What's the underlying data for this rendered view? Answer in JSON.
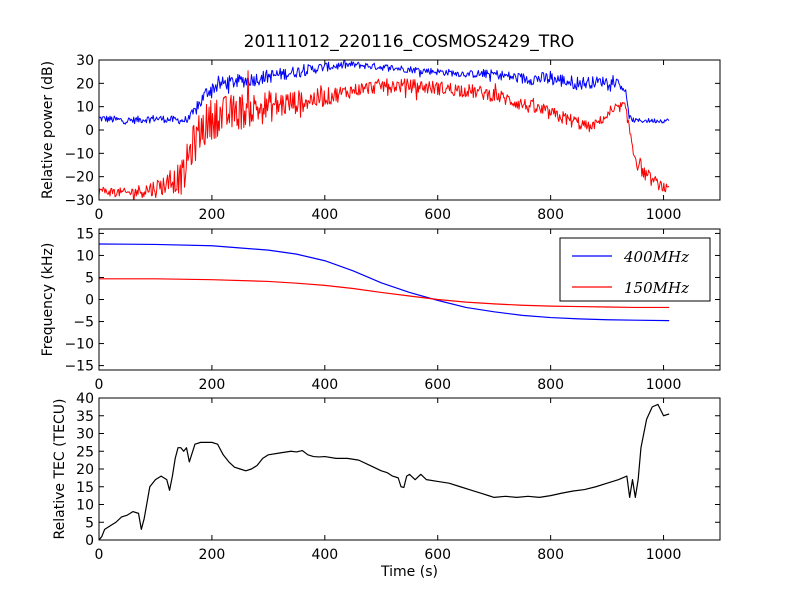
{
  "title": "20111012_220116_COSMOS2429_TRO",
  "chart_data": [
    {
      "type": "line",
      "id": "power",
      "ylabel": "Relative power (dB)",
      "xlabel": "",
      "xlim": [
        0,
        1100
      ],
      "ylim": [
        -30,
        30
      ],
      "xticks": [
        0,
        200,
        400,
        600,
        800,
        1000
      ],
      "yticks": [
        -30,
        -20,
        -10,
        0,
        10,
        20,
        30
      ],
      "noisy": true,
      "series": [
        {
          "color": "#0000ff",
          "x": [
            0,
            50,
            100,
            150,
            160,
            170,
            180,
            190,
            200,
            220,
            250,
            280,
            300,
            350,
            400,
            450,
            500,
            550,
            600,
            650,
            700,
            750,
            800,
            850,
            900,
            920,
            930,
            940,
            950,
            1010
          ],
          "y": [
            5,
            4,
            5,
            4,
            5,
            8,
            12,
            16,
            18,
            20,
            21,
            22,
            23,
            25,
            27,
            28,
            27,
            26,
            25,
            24,
            24,
            22,
            22,
            20,
            21,
            20,
            18,
            5,
            4,
            4
          ],
          "amp": [
            1.6,
            1.6,
            1.6,
            1.6,
            2,
            2.5,
            3,
            3,
            3,
            3,
            3,
            3,
            3,
            2.5,
            2,
            1.5,
            1.5,
            1.5,
            1.5,
            1.5,
            2,
            2.5,
            3,
            3,
            2,
            2,
            2,
            1.5,
            1,
            1
          ]
        },
        {
          "color": "#ff0000",
          "x": [
            0,
            50,
            100,
            130,
            150,
            160,
            170,
            180,
            200,
            250,
            300,
            350,
            400,
            450,
            500,
            550,
            600,
            650,
            700,
            750,
            800,
            850,
            870,
            900,
            930,
            940,
            950,
            970,
            1010
          ],
          "y": [
            -26,
            -27,
            -25,
            -22,
            -20,
            -10,
            -5,
            0,
            5,
            8,
            10,
            12,
            14,
            17,
            19,
            19,
            18,
            17,
            15,
            11,
            7,
            3,
            1,
            6,
            11,
            0,
            -12,
            -20,
            -26
          ],
          "amp": [
            2,
            2,
            4,
            5,
            8,
            8,
            9,
            9,
            9,
            8,
            7,
            5,
            4,
            3,
            3,
            3,
            3,
            3,
            3,
            3,
            3,
            3,
            2,
            2,
            2,
            4,
            4,
            3,
            2
          ]
        }
      ]
    },
    {
      "type": "line",
      "id": "frequency",
      "ylabel": "Frequency (kHz)",
      "xlabel": "",
      "xlim": [
        0,
        1100
      ],
      "ylim": [
        -16,
        16
      ],
      "xticks": [
        0,
        200,
        400,
        600,
        800,
        1000
      ],
      "yticks": [
        -15,
        -10,
        -5,
        0,
        5,
        10,
        15
      ],
      "legend_position": "top-right",
      "series": [
        {
          "name": "400MHz",
          "color": "#0000ff",
          "x": [
            0,
            100,
            200,
            300,
            350,
            400,
            450,
            500,
            550,
            600,
            650,
            700,
            750,
            800,
            850,
            900,
            950,
            1010
          ],
          "y": [
            12.6,
            12.5,
            12.2,
            11.2,
            10.3,
            8.8,
            6.5,
            3.8,
            1.6,
            -0.2,
            -1.8,
            -2.8,
            -3.6,
            -4.1,
            -4.4,
            -4.6,
            -4.7,
            -4.8
          ]
        },
        {
          "name": "150MHz",
          "color": "#ff0000",
          "x": [
            0,
            100,
            200,
            300,
            350,
            400,
            450,
            500,
            550,
            600,
            650,
            700,
            750,
            800,
            850,
            900,
            950,
            1010
          ],
          "y": [
            4.7,
            4.7,
            4.5,
            4.1,
            3.7,
            3.2,
            2.5,
            1.6,
            0.8,
            0.0,
            -0.6,
            -1.0,
            -1.3,
            -1.5,
            -1.6,
            -1.7,
            -1.8,
            -1.8
          ]
        }
      ]
    },
    {
      "type": "line",
      "id": "tec",
      "ylabel": "Relative TEC (TECU)",
      "xlabel": "Time (s)",
      "xlim": [
        0,
        1100
      ],
      "ylim": [
        0,
        40
      ],
      "xticks": [
        0,
        200,
        400,
        600,
        800,
        1000
      ],
      "yticks": [
        0,
        5,
        10,
        15,
        20,
        25,
        30,
        35,
        40
      ],
      "series": [
        {
          "color": "#000000",
          "x": [
            0,
            5,
            10,
            20,
            30,
            40,
            50,
            60,
            70,
            75,
            80,
            90,
            100,
            110,
            120,
            125,
            130,
            135,
            140,
            145,
            150,
            155,
            160,
            170,
            180,
            190,
            200,
            210,
            220,
            230,
            240,
            250,
            260,
            270,
            280,
            290,
            300,
            320,
            340,
            350,
            360,
            370,
            380,
            390,
            400,
            420,
            440,
            460,
            480,
            500,
            510,
            520,
            530,
            535,
            540,
            545,
            550,
            560,
            570,
            580,
            600,
            620,
            640,
            660,
            680,
            690,
            700,
            720,
            740,
            760,
            780,
            800,
            820,
            840,
            860,
            880,
            900,
            920,
            935,
            940,
            945,
            950,
            955,
            960,
            970,
            980,
            990,
            1000,
            1010
          ],
          "y": [
            0,
            1,
            3,
            4,
            5,
            6.5,
            7,
            8,
            7.5,
            3,
            6,
            15,
            17,
            18,
            17,
            14,
            18,
            23,
            26,
            26,
            25,
            26,
            22,
            27,
            27.5,
            27.5,
            27.5,
            27,
            24,
            22,
            20.5,
            20,
            19.5,
            20,
            21,
            23,
            24,
            24.5,
            25,
            24.8,
            25.2,
            24,
            23.5,
            23.4,
            23.5,
            23,
            23,
            22.5,
            21,
            19.5,
            19,
            18,
            17.5,
            15,
            14.8,
            18,
            18.5,
            17,
            18.5,
            17,
            16.5,
            16,
            15,
            14,
            13,
            12.5,
            12,
            12.3,
            12,
            12.3,
            12,
            12.5,
            13.2,
            13.8,
            14.2,
            15,
            16,
            17,
            18,
            12,
            17,
            12,
            17,
            26,
            34,
            37.5,
            38.2,
            35,
            35.5
          ]
        }
      ]
    }
  ]
}
